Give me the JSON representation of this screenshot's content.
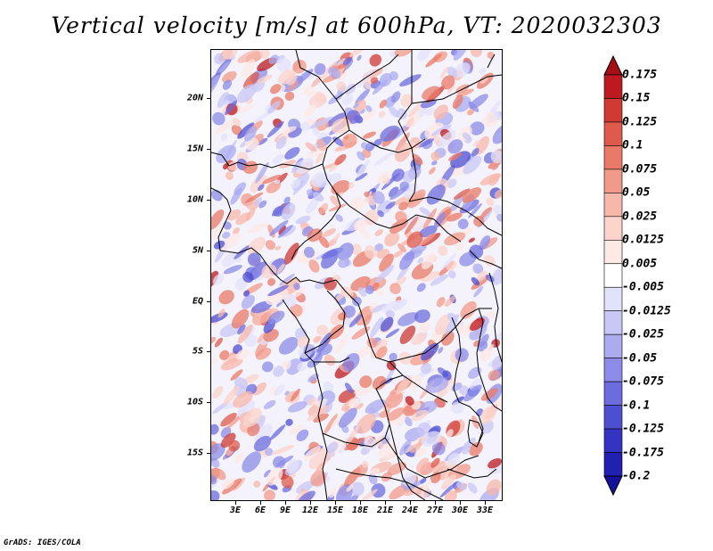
{
  "title": "Vertical velocity [m/s] at 600hPa, VT: 2020032303",
  "credit": "GrADS: IGES/COLA",
  "map": {
    "latitude_labels": [
      "20N",
      "15N",
      "10N",
      "5N",
      "EQ",
      "5S",
      "10S",
      "15S"
    ],
    "longitude_labels": [
      "3E",
      "6E",
      "9E",
      "12E",
      "15E",
      "18E",
      "21E",
      "24E",
      "27E",
      "30E",
      "33E"
    ],
    "field": "vertical velocity",
    "level": "600hPa",
    "valid_time": "2020032303"
  },
  "colorbar": {
    "labels": [
      "0.175",
      "0.15",
      "0.125",
      "0.1",
      "0.075",
      "0.05",
      "0.025",
      "0.0125",
      "0.005",
      "-0.005",
      "-0.0125",
      "-0.025",
      "-0.05",
      "-0.075",
      "-0.1",
      "-0.125",
      "-0.175",
      "-0.2"
    ],
    "colors": [
      "#a50f15",
      "#bd1a1f",
      "#cf3a33",
      "#de5a4c",
      "#e97a68",
      "#f29a8a",
      "#f7b7ab",
      "#fbd3cb",
      "#fde9e5",
      "#ffffff",
      "#e3e2fb",
      "#c9c7f6",
      "#ababf0",
      "#8c8ce8",
      "#6d6cde",
      "#4e4ed2",
      "#3433c2",
      "#2220ae",
      "#15119a"
    ]
  }
}
